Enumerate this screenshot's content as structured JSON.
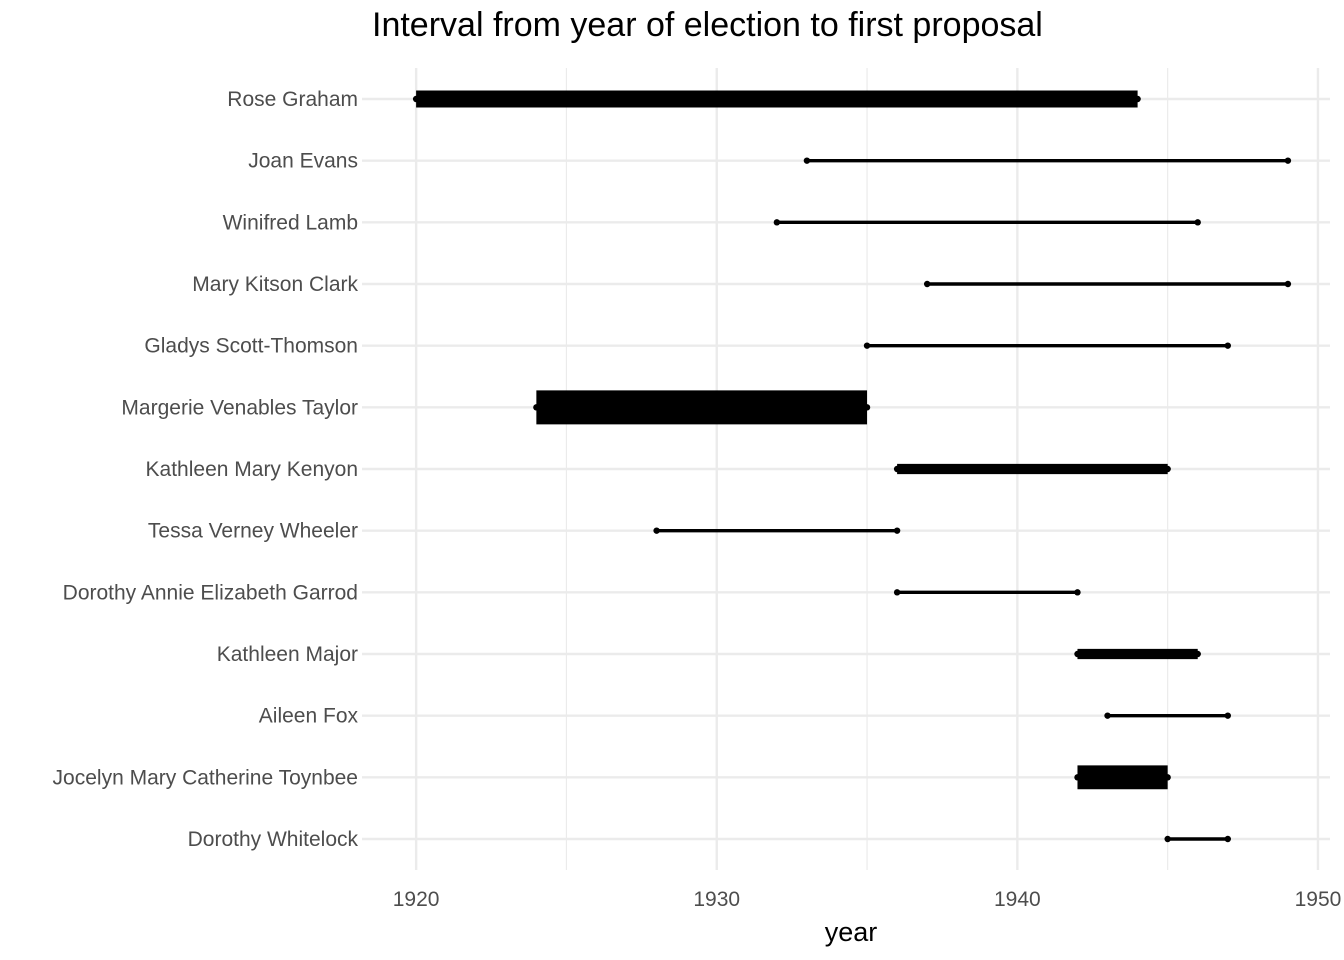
{
  "chart_data": {
    "type": "dumbbell",
    "title": "Interval from year of election to first proposal",
    "xlabel": "year",
    "ylabel": "",
    "xlim": [
      1918.2,
      1950.4
    ],
    "x_ticks": [
      1920,
      1930,
      1940,
      1950
    ],
    "grid": true,
    "legend": "none",
    "line_color": "#000000",
    "grid_color": "#ebebeb",
    "rows": [
      {
        "name": "Rose Graham",
        "start": 1920,
        "end": 1944,
        "weight": 5
      },
      {
        "name": "Joan Evans",
        "start": 1933,
        "end": 1949,
        "weight": 1
      },
      {
        "name": "Winifred Lamb",
        "start": 1932,
        "end": 1946,
        "weight": 1
      },
      {
        "name": "Mary Kitson Clark",
        "start": 1937,
        "end": 1949,
        "weight": 1
      },
      {
        "name": "Gladys Scott-Thomson",
        "start": 1935,
        "end": 1947,
        "weight": 1
      },
      {
        "name": "Margerie Venables Taylor",
        "start": 1924,
        "end": 1935,
        "weight": 10
      },
      {
        "name": "Kathleen Mary Kenyon",
        "start": 1936,
        "end": 1945,
        "weight": 3
      },
      {
        "name": "Tessa Verney Wheeler",
        "start": 1928,
        "end": 1936,
        "weight": 1
      },
      {
        "name": "Dorothy Annie Elizabeth Garrod",
        "start": 1936,
        "end": 1942,
        "weight": 1
      },
      {
        "name": "Kathleen Major",
        "start": 1942,
        "end": 1946,
        "weight": 3
      },
      {
        "name": "Aileen Fox",
        "start": 1943,
        "end": 1947,
        "weight": 1
      },
      {
        "name": "Jocelyn Mary Catherine Toynbee",
        "start": 1942,
        "end": 1945,
        "weight": 7
      },
      {
        "name": "Dorothy Whitelock",
        "start": 1945,
        "end": 1947,
        "weight": 1
      }
    ]
  }
}
